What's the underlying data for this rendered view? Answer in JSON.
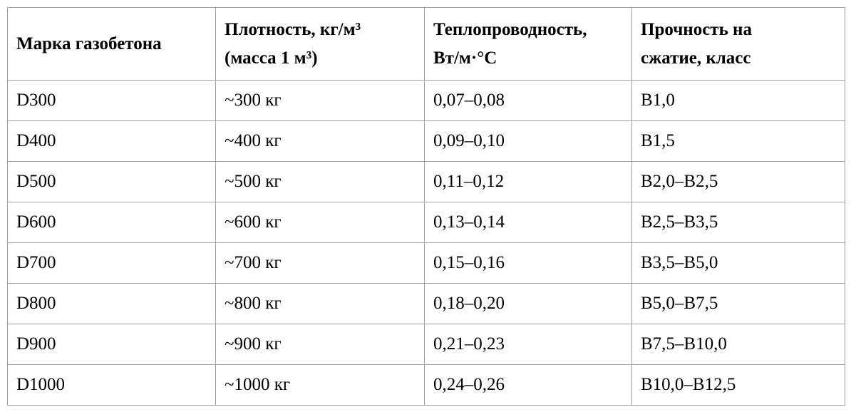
{
  "table": {
    "header": [
      [
        "Марка газобетона"
      ],
      [
        "Плотность, кг/м³",
        "(масса 1 м³)"
      ],
      [
        "Теплопроводность,",
        "Вт/м·°С"
      ],
      [
        "Прочность на",
        "сжатие, класс"
      ]
    ],
    "rows": [
      [
        "D300",
        "~300 кг",
        "0,07–0,08",
        "В1,0"
      ],
      [
        "D400",
        "~400 кг",
        "0,09–0,10",
        "В1,5"
      ],
      [
        "D500",
        "~500 кг",
        "0,11–0,12",
        "В2,0–В2,5"
      ],
      [
        "D600",
        "~600 кг",
        "0,13–0,14",
        "В2,5–В3,5"
      ],
      [
        "D700",
        "~700 кг",
        "0,15–0,16",
        "В3,5–В5,0"
      ],
      [
        "D800",
        "~800 кг",
        "0,18–0,20",
        "В5,0–В7,5"
      ],
      [
        "D900",
        "~900 кг",
        "0,21–0,23",
        "В7,5–В10,0"
      ],
      [
        "D1000",
        "~1000 кг",
        "0,24–0,26",
        "В10,0–В12,5"
      ]
    ]
  }
}
